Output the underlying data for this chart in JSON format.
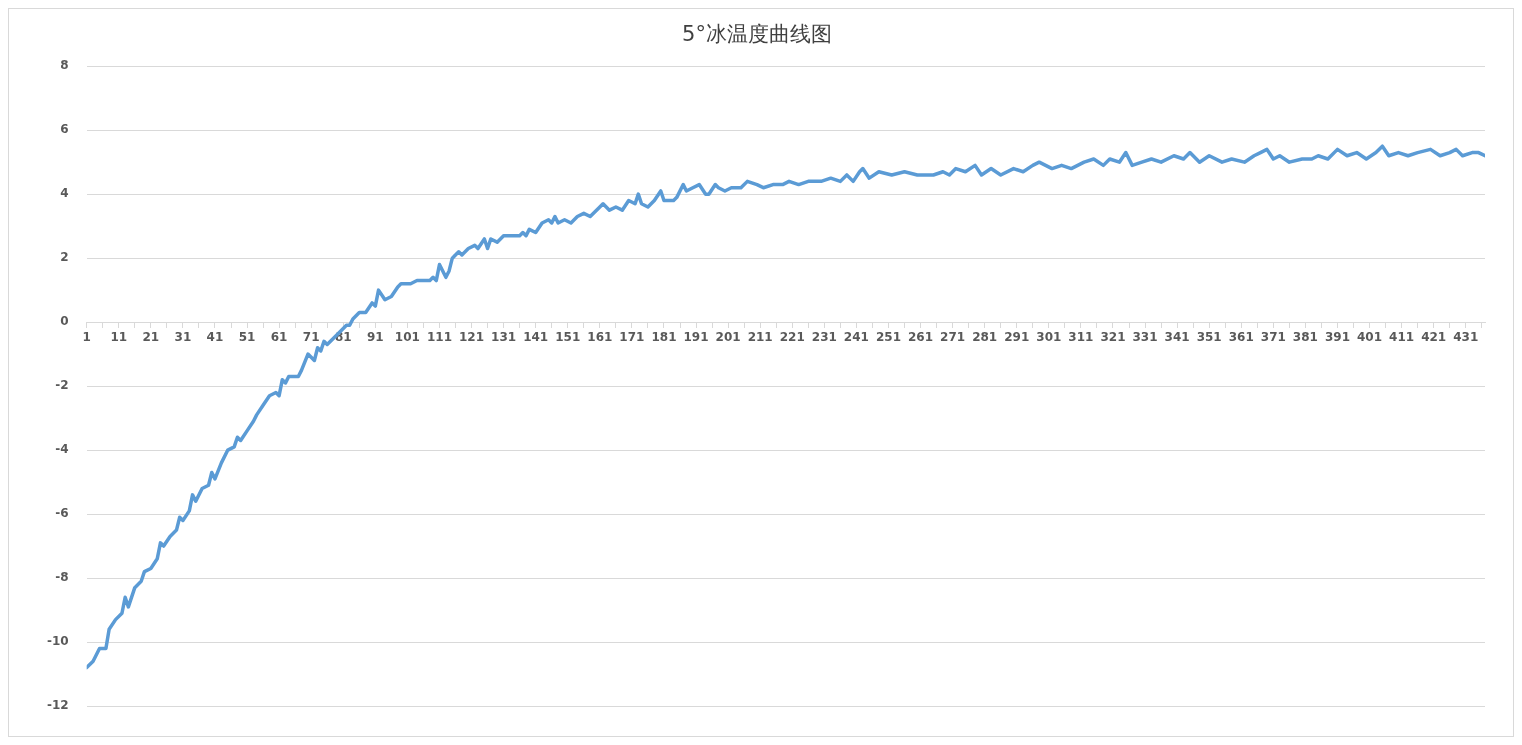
{
  "chart_data": {
    "type": "line",
    "title": "5°冰温度曲线图",
    "x": [
      1,
      3,
      5,
      7,
      8,
      10,
      12,
      13,
      14,
      16,
      18,
      19,
      21,
      23,
      24,
      25,
      27,
      29,
      30,
      31,
      33,
      34,
      35,
      37,
      39,
      40,
      41,
      43,
      45,
      47,
      48,
      49,
      51,
      53,
      54,
      56,
      58,
      60,
      61,
      62,
      63,
      64,
      67,
      68,
      70,
      72,
      73,
      74,
      75,
      76,
      80,
      82,
      83,
      84,
      86,
      88,
      90,
      91,
      92,
      94,
      96,
      98,
      99,
      102,
      104,
      108,
      109,
      110,
      111,
      113,
      114,
      115,
      117,
      118,
      120,
      122,
      123,
      125,
      126,
      127,
      129,
      131,
      136,
      137,
      138,
      139,
      141,
      143,
      145,
      146,
      147,
      148,
      150,
      152,
      154,
      156,
      158,
      161,
      162,
      164,
      166,
      168,
      170,
      172,
      173,
      174,
      176,
      178,
      180,
      181,
      184,
      185,
      187,
      188,
      190,
      192,
      194,
      195,
      197,
      198,
      200,
      202,
      205,
      207,
      210,
      212,
      215,
      218,
      220,
      223,
      226,
      230,
      233,
      236,
      238,
      240,
      242,
      243,
      245,
      248,
      252,
      256,
      260,
      265,
      268,
      270,
      272,
      275,
      278,
      280,
      283,
      286,
      290,
      293,
      296,
      298,
      302,
      305,
      308,
      312,
      315,
      318,
      320,
      323,
      325,
      327,
      330,
      333,
      336,
      340,
      343,
      345,
      348,
      351,
      355,
      358,
      362,
      365,
      367,
      369,
      371,
      373,
      376,
      380,
      383,
      385,
      388,
      391,
      394,
      397,
      400,
      403,
      405,
      407,
      410,
      413,
      416,
      420,
      423,
      426,
      428,
      430,
      433,
      435,
      437
    ],
    "series": [
      {
        "color": "#5b9bd5",
        "values": [
          -10.8,
          -10.6,
          -10.2,
          -10.2,
          -9.6,
          -9.3,
          -9.1,
          -8.6,
          -8.9,
          -8.3,
          -8.1,
          -7.8,
          -7.7,
          -7.4,
          -6.9,
          -7.0,
          -6.7,
          -6.5,
          -6.1,
          -6.2,
          -5.9,
          -5.4,
          -5.6,
          -5.2,
          -5.1,
          -4.7,
          -4.9,
          -4.4,
          -4.0,
          -3.9,
          -3.6,
          -3.7,
          -3.4,
          -3.1,
          -2.9,
          -2.6,
          -2.3,
          -2.2,
          -2.3,
          -1.8,
          -1.9,
          -1.7,
          -1.7,
          -1.5,
          -1.0,
          -1.2,
          -0.8,
          -0.9,
          -0.6,
          -0.7,
          -0.3,
          -0.1,
          -0.1,
          0.1,
          0.3,
          0.3,
          0.6,
          0.5,
          1.0,
          0.7,
          0.8,
          1.1,
          1.2,
          1.2,
          1.3,
          1.3,
          1.4,
          1.3,
          1.8,
          1.4,
          1.6,
          2.0,
          2.2,
          2.1,
          2.3,
          2.4,
          2.3,
          2.6,
          2.3,
          2.6,
          2.5,
          2.7,
          2.7,
          2.8,
          2.7,
          2.9,
          2.8,
          3.1,
          3.2,
          3.1,
          3.3,
          3.1,
          3.2,
          3.1,
          3.3,
          3.4,
          3.3,
          3.6,
          3.7,
          3.5,
          3.6,
          3.5,
          3.8,
          3.7,
          4.0,
          3.7,
          3.6,
          3.8,
          4.1,
          3.8,
          3.8,
          3.9,
          4.3,
          4.1,
          4.2,
          4.3,
          4.0,
          4.0,
          4.3,
          4.2,
          4.1,
          4.2,
          4.2,
          4.4,
          4.3,
          4.2,
          4.3,
          4.3,
          4.4,
          4.3,
          4.4,
          4.4,
          4.5,
          4.4,
          4.6,
          4.4,
          4.7,
          4.8,
          4.5,
          4.7,
          4.6,
          4.7,
          4.6,
          4.6,
          4.7,
          4.6,
          4.8,
          4.7,
          4.9,
          4.6,
          4.8,
          4.6,
          4.8,
          4.7,
          4.9,
          5.0,
          4.8,
          4.9,
          4.8,
          5.0,
          5.1,
          4.9,
          5.1,
          5.0,
          5.3,
          4.9,
          5.0,
          5.1,
          5.0,
          5.2,
          5.1,
          5.3,
          5.0,
          5.2,
          5.0,
          5.1,
          5.0,
          5.2,
          5.3,
          5.4,
          5.1,
          5.2,
          5.0,
          5.1,
          5.1,
          5.2,
          5.1,
          5.4,
          5.2,
          5.3,
          5.1,
          5.3,
          5.5,
          5.2,
          5.3,
          5.2,
          5.3,
          5.4,
          5.2,
          5.3,
          5.4,
          5.2,
          5.3,
          5.3,
          5.2
        ]
      }
    ],
    "xlim": [
      1,
      437
    ],
    "xticks": [
      1,
      {
        "value": 6,
        "label": null
      },
      11,
      {
        "value": 16,
        "label": null
      },
      21,
      {
        "value": 26,
        "label": null
      },
      31,
      {
        "value": 36,
        "label": null
      },
      41,
      {
        "value": 46,
        "label": null
      },
      51,
      {
        "value": 56,
        "label": null
      },
      61,
      {
        "value": 66,
        "label": null
      },
      71,
      {
        "value": 76,
        "label": null
      },
      81,
      {
        "value": 86,
        "label": null
      },
      91,
      {
        "value": 96,
        "label": null
      },
      101,
      {
        "value": 106,
        "label": null
      },
      111,
      {
        "value": 116,
        "label": null
      },
      121,
      {
        "value": 126,
        "label": null
      },
      131,
      {
        "value": 136,
        "label": null
      },
      141,
      {
        "value": 146,
        "label": null
      },
      151,
      {
        "value": 156,
        "label": null
      },
      161,
      {
        "value": 166,
        "label": null
      },
      171,
      {
        "value": 176,
        "label": null
      },
      181,
      {
        "value": 186,
        "label": null
      },
      191,
      {
        "value": 196,
        "label": null
      },
      201,
      {
        "value": 206,
        "label": null
      },
      211,
      {
        "value": 216,
        "label": null
      },
      221,
      {
        "value": 226,
        "label": null
      },
      231,
      {
        "value": 236,
        "label": null
      },
      241,
      {
        "value": 246,
        "label": null
      },
      251,
      {
        "value": 256,
        "label": null
      },
      261,
      {
        "value": 266,
        "label": null
      },
      271,
      {
        "value": 276,
        "label": null
      },
      281,
      {
        "value": 286,
        "label": null
      },
      291,
      {
        "value": 296,
        "label": null
      },
      301,
      {
        "value": 306,
        "label": null
      },
      311,
      {
        "value": 316,
        "label": null
      },
      321,
      {
        "value": 326,
        "label": null
      },
      331,
      {
        "value": 336,
        "label": null
      },
      341,
      {
        "value": 346,
        "label": null
      },
      351,
      {
        "value": 356,
        "label": null
      },
      361,
      {
        "value": 366,
        "label": null
      },
      371,
      {
        "value": 376,
        "label": null
      },
      381,
      {
        "value": 386,
        "label": null
      },
      391,
      {
        "value": 396,
        "label": null
      },
      401,
      {
        "value": 406,
        "label": null
      },
      411,
      {
        "value": 416,
        "label": null
      },
      421,
      {
        "value": 426,
        "label": null
      },
      431,
      {
        "value": 436,
        "label": null
      }
    ],
    "ylim": [
      -12,
      8
    ],
    "yticks": [
      -12,
      -10,
      -8,
      -6,
      -4,
      -2,
      0,
      2,
      4,
      6,
      8
    ],
    "grid": "y",
    "legend": false,
    "marker": "none",
    "line_style": "solid"
  }
}
